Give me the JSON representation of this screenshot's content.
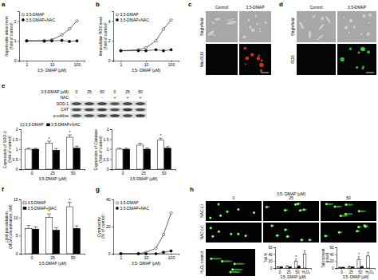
{
  "chart_data": [
    {
      "type": "line",
      "xlabel": "3,5- DMAP (μM)",
      "ylabel": "Superoxide anion level (fold of control)",
      "log": "x",
      "x": [
        1,
        5,
        10,
        25,
        50,
        100
      ],
      "xlim": [
        0.5,
        200
      ],
      "xticks": [
        1,
        10,
        100
      ],
      "ylim": [
        0,
        2.5
      ],
      "yticks": [
        0,
        1,
        2
      ],
      "legend": "top-left",
      "series": [
        {
          "name": "3,5-DMAP",
          "color": "#ffffff",
          "marker": "circle",
          "values": [
            1,
            1.02,
            1.05,
            1.3,
            1.6,
            2
          ]
        },
        {
          "name": "3,5-DMAP+NAC",
          "color": "#000000",
          "marker": "circle",
          "values": [
            1,
            0.98,
            1,
            1.02,
            0.97,
            1
          ]
        }
      ]
    },
    {
      "type": "line",
      "xlabel": "3,5- DMAP (μM)",
      "ylabel": "Intracellular ROS level (fold of control)",
      "log": "x",
      "x": [
        1,
        5,
        10,
        25,
        50,
        100
      ],
      "xlim": [
        0.5,
        200
      ],
      "xticks": [
        1,
        10,
        100
      ],
      "ylim": [
        0,
        5
      ],
      "yticks": [
        0,
        2,
        4
      ],
      "legend": "top-left",
      "series": [
        {
          "name": "3,5-DMAP",
          "color": "#ffffff",
          "marker": "circle",
          "values": [
            1,
            1.1,
            1.3,
            2,
            3.2,
            4.1
          ]
        },
        {
          "name": "3,5-DMAP+NAC",
          "color": "#000000",
          "marker": "circle",
          "values": [
            1,
            1,
            1,
            1.1,
            1,
            1.1
          ]
        }
      ]
    },
    {
      "type": "bar",
      "categories": [
        "0",
        "25",
        "50"
      ],
      "xlabel": "3,5-DMAP (μM)",
      "ylabel": "Expression of SOD-1 (fold of control)",
      "ylim": [
        0,
        2
      ],
      "yticks": [
        0,
        0.5,
        1,
        1.5,
        2
      ],
      "legend": "top",
      "series": [
        {
          "name": "3,5-DMAP",
          "color": "#ffffff",
          "values": [
            1,
            1.3,
            1.6
          ],
          "errors": [
            0.05,
            0.1,
            0.12
          ],
          "significance": [
            null,
            "*",
            "*"
          ]
        },
        {
          "name": "3,5-DMAP+NAC",
          "color": "#000000",
          "values": [
            1,
            0.95,
            1.05
          ],
          "errors": [
            0.05,
            0.08,
            0.1
          ]
        }
      ]
    },
    {
      "type": "bar",
      "categories": [
        "0",
        "25",
        "50"
      ],
      "xlabel": "3,5-DMAP (μM)",
      "ylabel": "Expression of Catalase (fold of control)",
      "ylim": [
        0,
        2
      ],
      "yticks": [
        0,
        0.5,
        1,
        1.5,
        2
      ],
      "series": [
        {
          "color": "#ffffff",
          "values": [
            1,
            1.2,
            1.45
          ],
          "errors": [
            0.05,
            0.1,
            0.1
          ],
          "significance": [
            null,
            null,
            "*"
          ]
        },
        {
          "color": "#000000",
          "values": [
            1,
            1,
            1.05
          ],
          "errors": [
            0.05,
            0.06,
            0.08
          ]
        }
      ]
    },
    {
      "type": "bar",
      "categories": [
        "0",
        "25",
        "50"
      ],
      "xlabel": "3,5-DMAP (μM)",
      "ylabel": "Lipid peroxidation (MDA concentration, nM)",
      "ylim": [
        0,
        15
      ],
      "yticks": [
        0,
        5,
        10,
        15
      ],
      "legend": "top-left",
      "series": [
        {
          "name": "3,5-DMAP",
          "color": "#ffffff",
          "values": [
            7,
            10,
            13
          ],
          "errors": [
            0.8,
            1,
            1.2
          ],
          "significance": [
            null,
            "*",
            "*"
          ]
        },
        {
          "name": "3,5-DMAP+NAC",
          "color": "#000000",
          "values": [
            6.8,
            6.5,
            7
          ],
          "errors": [
            0.6,
            0.7,
            0.7
          ]
        }
      ]
    },
    {
      "type": "line",
      "xlabel": "3,5- DMAP (μM)",
      "ylabel": "Cytotoxicity (% of control)",
      "log": "x",
      "x": [
        1,
        5,
        10,
        25,
        50,
        100
      ],
      "xlim": [
        0.5,
        200
      ],
      "xticks": [
        1,
        10,
        100
      ],
      "ylim": [
        0,
        40
      ],
      "yticks": [
        0,
        20,
        40
      ],
      "legend": "top-left",
      "series": [
        {
          "name": "3,5-DMAP",
          "color": "#ffffff",
          "marker": "circle",
          "values": [
            0,
            0,
            1,
            4,
            14,
            30
          ]
        },
        {
          "name": "3,5-DMAP+NAC",
          "color": "#000000",
          "marker": "circle",
          "values": [
            0,
            0,
            0,
            0,
            1,
            2
          ]
        }
      ]
    },
    {
      "type": "bar",
      "categories": [
        "0",
        "25",
        "50",
        "H₂O₂"
      ],
      "xlabel": "3,5- DMAP (μM)",
      "ylabel": "Tail %",
      "ylim": [
        0,
        60
      ],
      "yticks": [
        0,
        20,
        40,
        60
      ],
      "series": [
        {
          "color": "#ffffff",
          "values": [
            3,
            5,
            20,
            40
          ],
          "errors": [
            1,
            2,
            6,
            10
          ],
          "significance": [
            null,
            null,
            "*",
            null
          ]
        },
        {
          "color": "#000000",
          "values": [
            3,
            3,
            5,
            null
          ],
          "errors": [
            1,
            1,
            2,
            null
          ]
        }
      ]
    },
    {
      "type": "bar",
      "categories": [
        "0",
        "25",
        "50",
        "H₂O₂"
      ],
      "xlabel": "3,5- DMAP (μM)",
      "ylabel": "Tail moment (pixel)",
      "ylim": [
        0,
        60
      ],
      "yticks": [
        0,
        20,
        40,
        60
      ],
      "series": [
        {
          "color": "#ffffff",
          "values": [
            2,
            4,
            25,
            35
          ],
          "errors": [
            1,
            2,
            8,
            10
          ],
          "significance": [
            null,
            null,
            "*",
            null
          ]
        },
        {
          "color": "#000000",
          "values": [
            2,
            3,
            4,
            null
          ],
          "errors": [
            1,
            1,
            2,
            null
          ]
        }
      ]
    }
  ],
  "panel_labels": [
    "a",
    "b",
    "c",
    "d",
    "e",
    "f",
    "g",
    "h"
  ],
  "micrographs": [
    {
      "columns": [
        "Control",
        "3,5-DMAP"
      ],
      "rows": [
        "Brightfield",
        "MitoSOX"
      ]
    },
    {
      "columns": [
        "Control",
        "3,5-DMAP"
      ],
      "rows": [
        "Brightfield",
        "ROS"
      ]
    }
  ],
  "blot": {
    "dose_label": "3,5-DMAP (μM)",
    "doses": [
      0,
      25,
      50,
      0,
      25,
      50
    ],
    "treatment_label": "NAC",
    "treatment": [
      "-",
      "-",
      "-",
      "+",
      "+",
      "+"
    ],
    "bands": [
      "SOD-1",
      "CAT",
      "α-tubline"
    ]
  },
  "comet": {
    "title": "3,5- DMAP (μM)",
    "columns": [
      0,
      25,
      50
    ],
    "rows": [
      "NAC (-)",
      "NAC (+)"
    ],
    "control": "H₂O₂ control"
  }
}
